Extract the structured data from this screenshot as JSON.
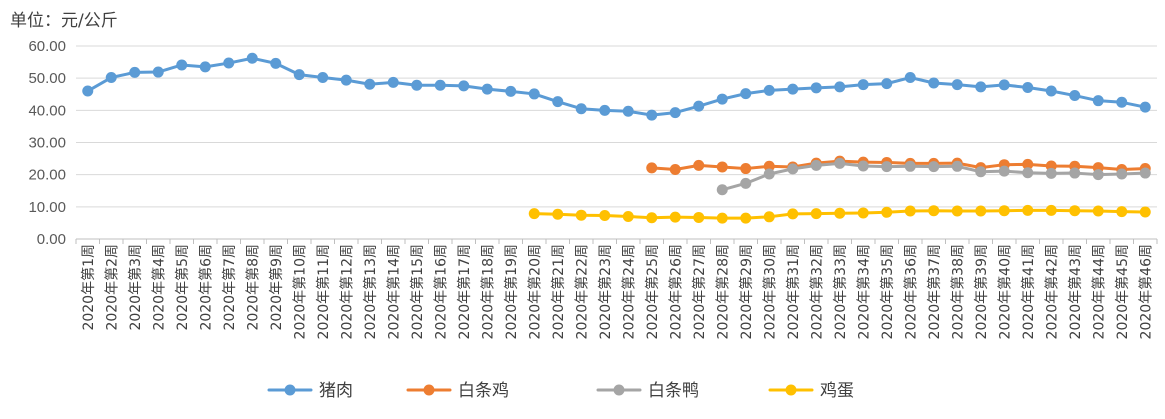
{
  "unit_label": "单位：元/公斤",
  "chart_data": {
    "type": "line",
    "ylim": [
      0,
      60
    ],
    "yticks": [
      "0.00",
      "10.00",
      "20.00",
      "30.00",
      "40.00",
      "50.00",
      "60.00"
    ],
    "grid": true,
    "legend_position": "bottom",
    "categories": [
      "2020年第1周",
      "2020年第2周",
      "2020年第3周",
      "2020年第4周",
      "2020年第5周",
      "2020年第6周",
      "2020年第7周",
      "2020年第8周",
      "2020年第9周",
      "2020年第10周",
      "2020年第11周",
      "2020年第12周",
      "2020年第13周",
      "2020年第14周",
      "2020年第15周",
      "2020年第16周",
      "2020年第17周",
      "2020年第18周",
      "2020年第19周",
      "2020年第20周",
      "2020年第21周",
      "2020年第22周",
      "2020年第23周",
      "2020年第24周",
      "2020年第25周",
      "2020年第26周",
      "2020年第27周",
      "2020年第28周",
      "2020年第29周",
      "2020年第30周",
      "2020年第31周",
      "2020年第32周",
      "2020年第33周",
      "2020年第34周",
      "2020年第35周",
      "2020年第36周",
      "2020年第37周",
      "2020年第38周",
      "2020年第39周",
      "2020年第40周",
      "2020年第41周",
      "2020年第42周",
      "2020年第43周",
      "2020年第44周",
      "2020年第45周",
      "2020年第46周"
    ],
    "series": [
      {
        "name": "猪肉",
        "color": "#5B9BD5",
        "values": [
          46.0,
          50.2,
          51.8,
          51.9,
          54.1,
          53.5,
          54.7,
          56.2,
          54.6,
          51.1,
          50.2,
          49.4,
          48.1,
          48.7,
          47.8,
          47.8,
          47.6,
          46.6,
          45.9,
          45.1,
          42.7,
          40.5,
          40.0,
          39.7,
          38.5,
          39.3,
          41.3,
          43.5,
          45.2,
          46.2,
          46.6,
          47.0,
          47.3,
          48.0,
          48.3,
          50.2,
          48.5,
          48.0,
          47.3,
          47.9,
          47.1,
          46.0,
          44.6,
          43.0,
          42.5,
          41.0
        ]
      },
      {
        "name": "白条鸡",
        "color": "#ED7D31",
        "values": [
          null,
          null,
          null,
          null,
          null,
          null,
          null,
          null,
          null,
          null,
          null,
          null,
          null,
          null,
          null,
          null,
          null,
          null,
          null,
          null,
          null,
          null,
          null,
          null,
          22.1,
          21.6,
          22.9,
          22.4,
          21.9,
          22.6,
          22.4,
          23.6,
          24.2,
          23.9,
          23.8,
          23.5,
          23.5,
          23.6,
          22.2,
          23.1,
          23.2,
          22.7,
          22.6,
          22.2,
          21.6,
          21.9
        ]
      },
      {
        "name": "白条鸭",
        "color": "#A5A5A5",
        "values": [
          null,
          null,
          null,
          null,
          null,
          null,
          null,
          null,
          null,
          null,
          null,
          null,
          null,
          null,
          null,
          null,
          null,
          null,
          null,
          null,
          null,
          null,
          null,
          null,
          null,
          null,
          null,
          15.3,
          17.3,
          20.2,
          21.8,
          22.9,
          23.5,
          22.7,
          22.5,
          22.6,
          22.5,
          22.6,
          20.9,
          21.1,
          20.6,
          20.4,
          20.5,
          20.0,
          20.2,
          20.5
        ]
      },
      {
        "name": "鸡蛋",
        "color": "#FFC000",
        "values": [
          null,
          null,
          null,
          null,
          null,
          null,
          null,
          null,
          null,
          null,
          null,
          null,
          null,
          null,
          null,
          null,
          null,
          null,
          null,
          7.9,
          7.7,
          7.4,
          7.3,
          7.0,
          6.6,
          6.8,
          6.7,
          6.5,
          6.5,
          6.9,
          7.8,
          7.9,
          8.0,
          8.1,
          8.3,
          8.7,
          8.8,
          8.7,
          8.7,
          8.8,
          8.9,
          8.9,
          8.8,
          8.7,
          8.5,
          8.4
        ]
      }
    ]
  }
}
